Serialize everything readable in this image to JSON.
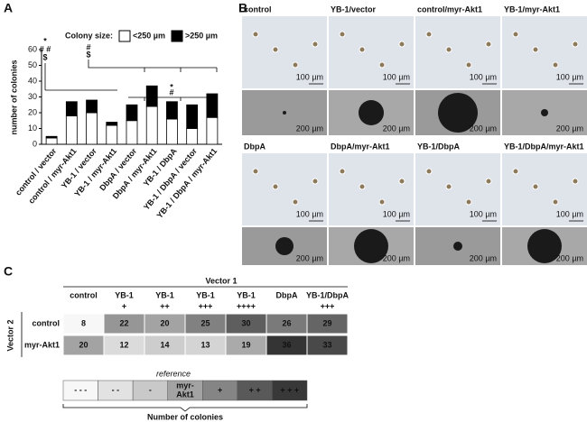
{
  "panel_labels": [
    "A",
    "B",
    "C"
  ],
  "chart_data": {
    "type": "bar",
    "stacked": true,
    "legend_title": "Colony size:",
    "y_label": "number of colonies",
    "categories": [
      "control / vector",
      "control / myr-Akt1",
      "YB-1 / vector",
      "YB-1 / myr-Akt1",
      "DbpA / vector",
      "DbpA / myr-Akt1",
      "YB-1 / DbpA",
      "YB-1 / DbpA / vector",
      "YB-1 / DbpA / myr-Akt1"
    ],
    "series": [
      {
        "name": "<250 µm",
        "color": "#ffffff",
        "values": [
          4,
          18,
          20,
          12,
          15,
          24,
          16,
          10,
          17
        ]
      },
      {
        "name": ">250 µm",
        "color": "#000000",
        "values": [
          1,
          9,
          8,
          2,
          10,
          13,
          11,
          15,
          15
        ]
      }
    ],
    "ylim": [
      0,
      60
    ],
    "yticks": [
      0,
      10,
      20,
      30,
      40,
      50,
      60
    ],
    "annotations": [
      "*",
      "# #",
      "$",
      "#",
      "$",
      "*",
      "#"
    ]
  },
  "panel_b": {
    "images": [
      {
        "label": "control",
        "scales": [
          "100 µm",
          "200 µm"
        ]
      },
      {
        "label": "YB-1/vector",
        "scales": [
          "100 µm",
          "200 µm"
        ]
      },
      {
        "label": "control/myr-Akt1",
        "scales": [
          "100 µm",
          "200 µm"
        ]
      },
      {
        "label": "YB-1/myr-Akt1",
        "scales": [
          "100 µm",
          "200 µm"
        ]
      },
      {
        "label": "DbpA",
        "scales": [
          "100 µm",
          "200 µm"
        ]
      },
      {
        "label": "DbpA/myr-Akt1",
        "scales": [
          "100 µm",
          "200 µm"
        ]
      },
      {
        "label": "YB-1/DbpA",
        "scales": [
          "100 µm",
          "200 µm"
        ]
      },
      {
        "label": "YB-1/DbpA/myr-Akt1",
        "scales": [
          "100 µm",
          "200 µm"
        ]
      }
    ]
  },
  "panel_c": {
    "column_title": "Vector 1",
    "row_title": "Vector 2",
    "columns": [
      [
        "control"
      ],
      [
        "YB-1",
        "+"
      ],
      [
        "YB-1",
        "++"
      ],
      [
        "YB-1",
        "+++"
      ],
      [
        "YB-1",
        "++++"
      ],
      [
        "DbpA"
      ],
      [
        "YB-1/DbpA",
        "+++"
      ]
    ],
    "rows": [
      {
        "label": "control",
        "values": [
          8,
          22,
          20,
          25,
          30,
          26,
          29
        ]
      },
      {
        "label": "myr-Akt1",
        "values": [
          20,
          12,
          14,
          13,
          19,
          36,
          33
        ]
      }
    ],
    "scale_note": "reference",
    "scale": [
      {
        "label": "- - -",
        "color": "#f7f7f7"
      },
      {
        "label": "- -",
        "color": "#e2e2e2"
      },
      {
        "label": "-",
        "color": "#c9c9c9"
      },
      {
        "label": [
          "myr-",
          "Akt1"
        ],
        "color": "#a3a3a3"
      },
      {
        "label": "+",
        "color": "#858585"
      },
      {
        "label": "+ +",
        "color": "#595959"
      },
      {
        "label": "+ + +",
        "color": "#383838"
      }
    ],
    "scale_title": "Number of colonies"
  }
}
